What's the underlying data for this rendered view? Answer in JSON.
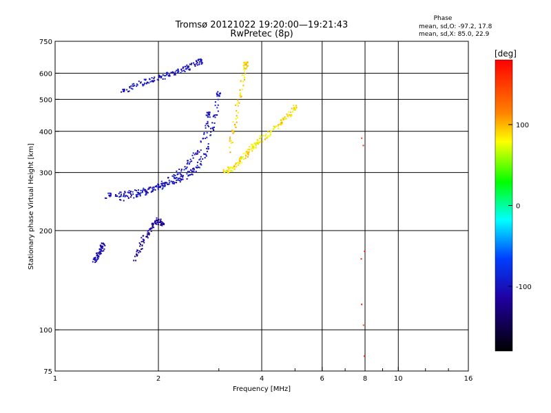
{
  "header": {
    "title": "Tromsø 20121022 19:20:00—19:21:43",
    "subtitle": "RwPretec (8p)"
  },
  "phase_box": {
    "heading": "Phase",
    "line_o": "mean, sd,O: -97.2, 17.8",
    "line_x": "mean, sd,X: 85.0, 22.9"
  },
  "colorbar": {
    "label": "[deg]",
    "tick_labels": [
      "100",
      "0",
      "-100"
    ],
    "tick_values": [
      100,
      0,
      -100
    ],
    "range": [
      -180,
      180
    ]
  },
  "chart_data": {
    "type": "scatter",
    "title": "Tromsø 20121022 19:20:00—19:21:43",
    "subtitle": "RwPretec (8p)",
    "xlabel": "Frequency [MHz]",
    "ylabel": "Stationary phase Virtual Height [km]",
    "x_scale": "log",
    "y_scale": "log",
    "xlim": [
      1,
      16
    ],
    "ylim": [
      75,
      750
    ],
    "x_ticks": [
      1,
      2,
      4,
      6,
      8,
      10,
      16
    ],
    "x_tick_labels": [
      "1",
      "2",
      "4",
      "6",
      "8",
      "10",
      "16"
    ],
    "x_minor_ticks": [
      3,
      5,
      7,
      9,
      12,
      14
    ],
    "y_ticks": [
      75,
      100,
      200,
      300,
      400,
      500,
      600,
      750
    ],
    "y_tick_labels": [
      "75",
      "100",
      "200",
      "300",
      "400",
      "500",
      "600",
      "750"
    ],
    "grid": true,
    "color_variable": "phase [deg]",
    "traces": [
      {
        "mode": "O",
        "x": [
          1.4,
          1.5,
          1.6,
          1.7,
          1.8,
          1.9,
          2.0,
          2.1,
          2.2,
          2.3,
          2.4,
          2.5,
          2.6,
          2.7,
          2.8,
          2.9,
          3.0
        ],
        "y": [
          255,
          256,
          258,
          260,
          263,
          266,
          270,
          275,
          280,
          286,
          292,
          300,
          312,
          330,
          360,
          420,
          520
        ],
        "phase": -100
      },
      {
        "mode": "O-branch",
        "x": [
          1.55,
          1.7,
          1.85,
          2.0,
          2.15,
          2.3,
          2.45,
          2.6,
          2.75,
          2.8
        ],
        "y": [
          250,
          255,
          262,
          272,
          285,
          300,
          320,
          345,
          390,
          450
        ],
        "phase": -100
      },
      {
        "mode": "O-upper",
        "x": [
          1.55,
          1.65,
          1.75,
          1.85,
          1.95,
          2.05,
          2.15,
          2.25,
          2.35,
          2.45,
          2.55,
          2.65
        ],
        "y": [
          525,
          540,
          555,
          565,
          575,
          585,
          595,
          605,
          615,
          625,
          640,
          650
        ],
        "phase": -100
      },
      {
        "mode": "O-low",
        "x": [
          1.7,
          1.75,
          1.8,
          1.85,
          1.9,
          1.95,
          2.0,
          2.05
        ],
        "y": [
          160,
          175,
          185,
          195,
          205,
          210,
          215,
          210
        ],
        "phase": -120
      },
      {
        "mode": "O-low2",
        "x": [
          1.3,
          1.32,
          1.34,
          1.36,
          1.38
        ],
        "y": [
          160,
          165,
          170,
          175,
          180
        ],
        "phase": -110
      },
      {
        "mode": "X",
        "x": [
          3.1,
          3.2,
          3.3,
          3.4,
          3.5,
          3.6,
          3.7,
          3.8,
          3.9,
          4.0,
          4.2,
          4.4,
          4.6,
          4.8,
          5.0
        ],
        "y": [
          300,
          305,
          310,
          320,
          330,
          340,
          350,
          360,
          370,
          380,
          395,
          410,
          430,
          450,
          470
        ],
        "phase": 85
      },
      {
        "mode": "X-upper",
        "x": [
          3.2,
          3.3,
          3.4,
          3.5,
          3.55,
          3.6
        ],
        "y": [
          350,
          400,
          470,
          540,
          600,
          640
        ],
        "phase": 90
      },
      {
        "mode": "sporadic",
        "x": [
          7.9,
          7.9,
          7.9,
          7.9,
          7.9,
          7.9,
          7.9
        ],
        "y": [
          360,
          380,
          170,
          165,
          120,
          103,
          83
        ],
        "phase": 160
      }
    ]
  }
}
